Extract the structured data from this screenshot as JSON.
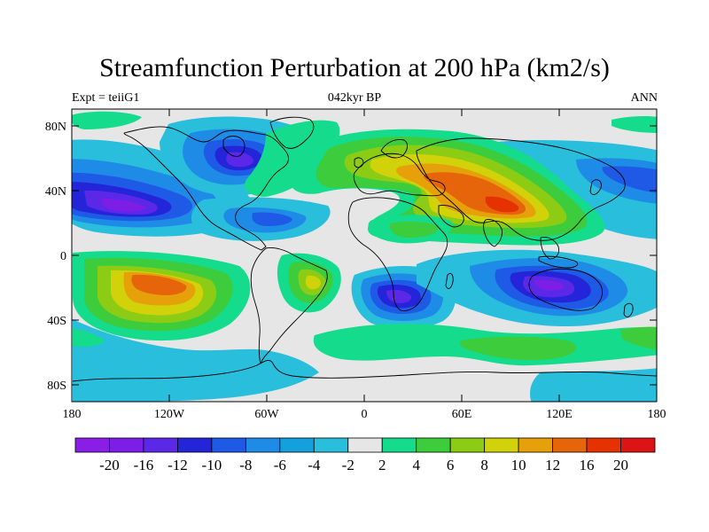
{
  "title": "Streamfunction Perturbation at 200 hPa (km2/s)",
  "subtitle_left": "Expt = teiiG1",
  "subtitle_center": "042kyr BP",
  "subtitle_right": "ANN",
  "y_ticks": [
    "80N",
    "40N",
    "0",
    "40S",
    "80S"
  ],
  "x_ticks": [
    "180",
    "120W",
    "60W",
    "0",
    "60E",
    "120E",
    "180"
  ],
  "colorbar": {
    "labels": [
      "-20",
      "-16",
      "-12",
      "-10",
      "-8",
      "-6",
      "-4",
      "-2",
      "2",
      "4",
      "6",
      "8",
      "10",
      "12",
      "16",
      "20"
    ],
    "colors": [
      "#8a1ee6",
      "#7c1ee6",
      "#5a28e6",
      "#2424d8",
      "#1e5ae6",
      "#1e8ce6",
      "#14a0dc",
      "#28bedc",
      "#e6e6e6",
      "#14dc8c",
      "#3ccc3c",
      "#8ccc14",
      "#d2d20a",
      "#e6a00a",
      "#e6640a",
      "#e63200",
      "#dc1414"
    ]
  },
  "colors": {
    "background_field": "#e6e6e6",
    "coastline": "#000000"
  }
}
